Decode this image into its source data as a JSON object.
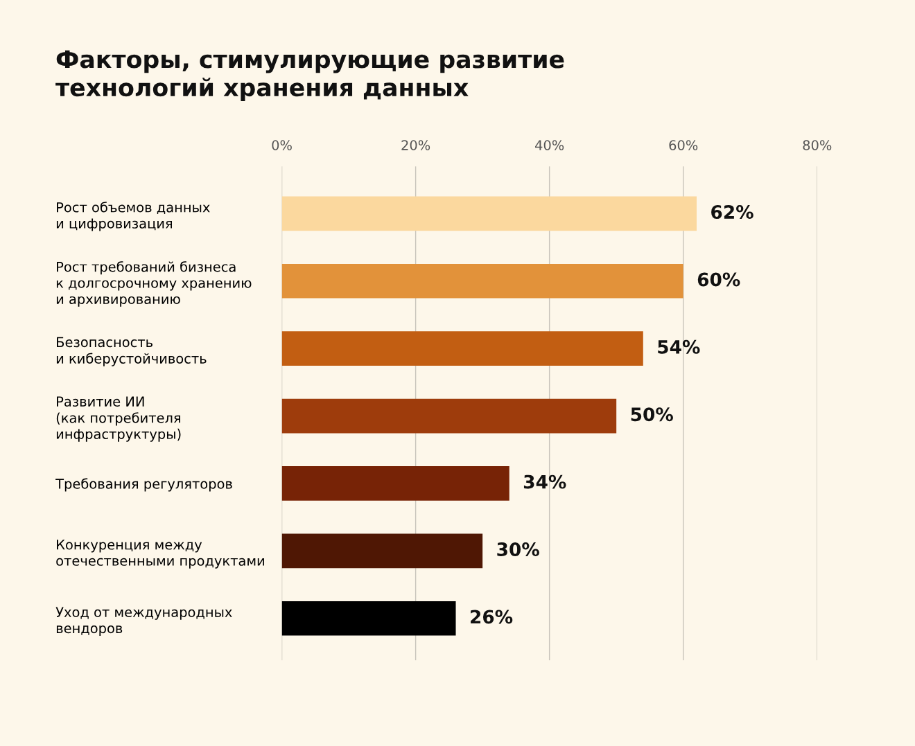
{
  "chart_data": {
    "type": "bar",
    "orientation": "horizontal",
    "title": "Факторы, стимулирующие развитие\nтехнологий хранения данных",
    "categories": [
      "Рост объемов данных\nи цифровизация",
      "Рост требований бизнеса\nк долгосрочному хранению\nи архивированию",
      "Безопасность\nи киберустойчивость",
      "Развитие ИИ\n(как потребителя\nинфраструктуры)",
      "Требования регуляторов",
      "Конкуренция между\nотечественными продуктами",
      "Уход от международных\nвендоров"
    ],
    "values": [
      62,
      60,
      54,
      50,
      34,
      30,
      26
    ],
    "value_labels": [
      "62%",
      "60%",
      "54%",
      "50%",
      "34%",
      "30%",
      "26%"
    ],
    "colors": [
      "#fbd89e",
      "#e2923a",
      "#c25e12",
      "#9e3c0c",
      "#772306",
      "#4f1704",
      "#000000"
    ],
    "xlim": [
      0,
      80
    ],
    "xticks": [
      {
        "value": 0,
        "label": "0%"
      },
      {
        "value": 20,
        "label": "20%"
      },
      {
        "value": 40,
        "label": "40%"
      },
      {
        "value": 60,
        "label": "60%"
      },
      {
        "value": 80,
        "label": "80%"
      }
    ],
    "grid": "x"
  }
}
